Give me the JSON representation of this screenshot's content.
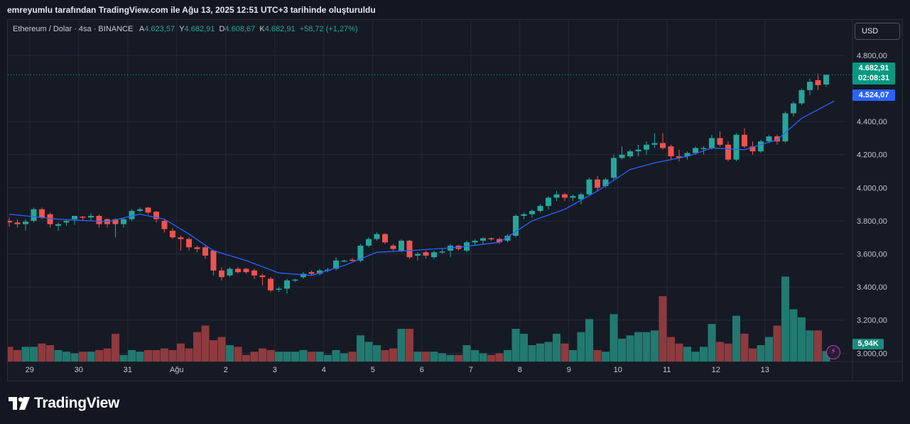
{
  "header": {
    "snapshot_text": "emreyumlu tarafından TradingView.com ile Ağu 13, 2025 12:51 UTC+3 tarihinde oluşturuldu"
  },
  "legend": {
    "symbol": "Ethereum / Dolar · 4sa · BINANCE",
    "open_label": "A",
    "open": "4.623,57",
    "high_label": "Y",
    "high": "4.682,91",
    "low_label": "D",
    "low": "4.608,67",
    "close_label": "K",
    "close": "4.682,91",
    "change": "+58,72 (+1,27%)"
  },
  "currency_button": "USD",
  "price_tags": {
    "last_price": "4.682,91",
    "countdown": "02:08:31",
    "ma_value": "4.524,07",
    "volume": "5,94K"
  },
  "brand": {
    "name": "TradingView"
  },
  "colors": {
    "up": "#26a69a",
    "down": "#ef5350",
    "up_volume": "#22796f",
    "down_volume": "#8e3a3e",
    "moving_average": "#2962ff",
    "background": "#161a25",
    "grid": "#262b3a"
  },
  "chart_data": {
    "type": "candlestick",
    "symbol": "ETHUSD",
    "timeframe": "4sa",
    "x_ticks": [
      "29",
      "30",
      "31",
      "Ağu",
      "2",
      "3",
      "4",
      "5",
      "6",
      "7",
      "8",
      "9",
      "10",
      "11",
      "12",
      "13"
    ],
    "y_ticks": [
      "4.800,00",
      "4.400,00",
      "4.200,00",
      "4.000,00",
      "3.800,00",
      "3.600,00",
      "3.400,00",
      "3.200,00",
      "3.000,00"
    ],
    "y_tick_values": [
      4800,
      4400,
      4200,
      4000,
      3800,
      3600,
      3400,
      3200,
      3000
    ],
    "ylim": [
      2950,
      4980
    ],
    "grid": true,
    "candles": [
      {
        "o": 3800,
        "h": 3820,
        "l": 3765,
        "c": 3790,
        "v": 0.45
      },
      {
        "o": 3790,
        "h": 3810,
        "l": 3760,
        "c": 3780,
        "v": 0.35
      },
      {
        "o": 3780,
        "h": 3810,
        "l": 3740,
        "c": 3795,
        "v": 0.45
      },
      {
        "o": 3800,
        "h": 3880,
        "l": 3790,
        "c": 3870,
        "v": 0.45
      },
      {
        "o": 3870,
        "h": 3880,
        "l": 3810,
        "c": 3820,
        "v": 0.55
      },
      {
        "o": 3840,
        "h": 3850,
        "l": 3760,
        "c": 3780,
        "v": 0.5
      },
      {
        "o": 3770,
        "h": 3790,
        "l": 3740,
        "c": 3780,
        "v": 0.35
      },
      {
        "o": 3790,
        "h": 3810,
        "l": 3770,
        "c": 3800,
        "v": 0.3
      },
      {
        "o": 3810,
        "h": 3825,
        "l": 3775,
        "c": 3830,
        "v": 0.25
      },
      {
        "o": 3825,
        "h": 3830,
        "l": 3805,
        "c": 3820,
        "v": 0.3
      },
      {
        "o": 3820,
        "h": 3845,
        "l": 3800,
        "c": 3830,
        "v": 0.3
      },
      {
        "o": 3830,
        "h": 3840,
        "l": 3760,
        "c": 3780,
        "v": 0.35
      },
      {
        "o": 3810,
        "h": 3815,
        "l": 3760,
        "c": 3780,
        "v": 0.4
      },
      {
        "o": 3810,
        "h": 3815,
        "l": 3700,
        "c": 3780,
        "v": 0.85
      },
      {
        "o": 3780,
        "h": 3820,
        "l": 3760,
        "c": 3810,
        "v": 0.2
      },
      {
        "o": 3810,
        "h": 3870,
        "l": 3800,
        "c": 3860,
        "v": 0.35
      },
      {
        "o": 3860,
        "h": 3880,
        "l": 3850,
        "c": 3870,
        "v": 0.3
      },
      {
        "o": 3880,
        "h": 3885,
        "l": 3840,
        "c": 3850,
        "v": 0.35
      },
      {
        "o": 3855,
        "h": 3860,
        "l": 3790,
        "c": 3810,
        "v": 0.35
      },
      {
        "o": 3800,
        "h": 3810,
        "l": 3730,
        "c": 3750,
        "v": 0.4
      },
      {
        "o": 3740,
        "h": 3755,
        "l": 3690,
        "c": 3700,
        "v": 0.35
      },
      {
        "o": 3700,
        "h": 3710,
        "l": 3620,
        "c": 3690,
        "v": 0.55
      },
      {
        "o": 3690,
        "h": 3700,
        "l": 3620,
        "c": 3640,
        "v": 0.4
      },
      {
        "o": 3640,
        "h": 3650,
        "l": 3610,
        "c": 3630,
        "v": 0.9
      },
      {
        "o": 3640,
        "h": 3650,
        "l": 3570,
        "c": 3590,
        "v": 1.1
      },
      {
        "o": 3620,
        "h": 3625,
        "l": 3470,
        "c": 3500,
        "v": 0.65
      },
      {
        "o": 3500,
        "h": 3520,
        "l": 3440,
        "c": 3460,
        "v": 0.75
      },
      {
        "o": 3470,
        "h": 3520,
        "l": 3460,
        "c": 3510,
        "v": 0.5
      },
      {
        "o": 3510,
        "h": 3520,
        "l": 3480,
        "c": 3490,
        "v": 0.45
      },
      {
        "o": 3510,
        "h": 3515,
        "l": 3480,
        "c": 3490,
        "v": 0.2
      },
      {
        "o": 3500,
        "h": 3510,
        "l": 3450,
        "c": 3470,
        "v": 0.3
      },
      {
        "o": 3470,
        "h": 3480,
        "l": 3410,
        "c": 3460,
        "v": 0.4
      },
      {
        "o": 3450,
        "h": 3460,
        "l": 3370,
        "c": 3380,
        "v": 0.35
      },
      {
        "o": 3385,
        "h": 3400,
        "l": 3370,
        "c": 3390,
        "v": 0.3
      },
      {
        "o": 3390,
        "h": 3450,
        "l": 3360,
        "c": 3440,
        "v": 0.3
      },
      {
        "o": 3440,
        "h": 3450,
        "l": 3430,
        "c": 3445,
        "v": 0.3
      },
      {
        "o": 3460,
        "h": 3490,
        "l": 3450,
        "c": 3480,
        "v": 0.35
      },
      {
        "o": 3490,
        "h": 3500,
        "l": 3470,
        "c": 3480,
        "v": 0.3
      },
      {
        "o": 3480,
        "h": 3510,
        "l": 3470,
        "c": 3500,
        "v": 0.3
      },
      {
        "o": 3500,
        "h": 3515,
        "l": 3490,
        "c": 3505,
        "v": 0.2
      },
      {
        "o": 3510,
        "h": 3580,
        "l": 3500,
        "c": 3560,
        "v": 0.35
      },
      {
        "o": 3560,
        "h": 3565,
        "l": 3550,
        "c": 3560,
        "v": 0.25
      },
      {
        "o": 3565,
        "h": 3575,
        "l": 3555,
        "c": 3560,
        "v": 0.3
      },
      {
        "o": 3560,
        "h": 3660,
        "l": 3550,
        "c": 3650,
        "v": 0.8
      },
      {
        "o": 3650,
        "h": 3700,
        "l": 3640,
        "c": 3690,
        "v": 0.6
      },
      {
        "o": 3690,
        "h": 3730,
        "l": 3680,
        "c": 3720,
        "v": 0.5
      },
      {
        "o": 3720,
        "h": 3725,
        "l": 3660,
        "c": 3670,
        "v": 0.35
      },
      {
        "o": 3650,
        "h": 3660,
        "l": 3620,
        "c": 3630,
        "v": 0.4
      },
      {
        "o": 3620,
        "h": 3690,
        "l": 3610,
        "c": 3680,
        "v": 1.0
      },
      {
        "o": 3680,
        "h": 3685,
        "l": 3570,
        "c": 3580,
        "v": 1.0
      },
      {
        "o": 3590,
        "h": 3610,
        "l": 3560,
        "c": 3600,
        "v": 0.3
      },
      {
        "o": 3610,
        "h": 3620,
        "l": 3570,
        "c": 3590,
        "v": 0.3
      },
      {
        "o": 3580,
        "h": 3620,
        "l": 3570,
        "c": 3610,
        "v": 0.3
      },
      {
        "o": 3610,
        "h": 3630,
        "l": 3600,
        "c": 3615,
        "v": 0.25
      },
      {
        "o": 3620,
        "h": 3660,
        "l": 3580,
        "c": 3650,
        "v": 0.2
      },
      {
        "o": 3650,
        "h": 3655,
        "l": 3620,
        "c": 3630,
        "v": 0.2
      },
      {
        "o": 3620,
        "h": 3680,
        "l": 3610,
        "c": 3670,
        "v": 0.5
      },
      {
        "o": 3670,
        "h": 3690,
        "l": 3650,
        "c": 3680,
        "v": 0.35
      },
      {
        "o": 3680,
        "h": 3700,
        "l": 3660,
        "c": 3695,
        "v": 0.25
      },
      {
        "o": 3695,
        "h": 3700,
        "l": 3680,
        "c": 3690,
        "v": 0.2
      },
      {
        "o": 3690,
        "h": 3700,
        "l": 3660,
        "c": 3670,
        "v": 0.25
      },
      {
        "o": 3680,
        "h": 3720,
        "l": 3670,
        "c": 3710,
        "v": 0.35
      },
      {
        "o": 3710,
        "h": 3840,
        "l": 3700,
        "c": 3830,
        "v": 1.0
      },
      {
        "o": 3830,
        "h": 3850,
        "l": 3810,
        "c": 3840,
        "v": 0.85
      },
      {
        "o": 3840,
        "h": 3870,
        "l": 3820,
        "c": 3860,
        "v": 0.5
      },
      {
        "o": 3860,
        "h": 3900,
        "l": 3850,
        "c": 3890,
        "v": 0.55
      },
      {
        "o": 3890,
        "h": 3950,
        "l": 3870,
        "c": 3940,
        "v": 0.6
      },
      {
        "o": 3940,
        "h": 3980,
        "l": 3920,
        "c": 3960,
        "v": 0.85
      },
      {
        "o": 3960,
        "h": 3970,
        "l": 3920,
        "c": 3940,
        "v": 0.55
      },
      {
        "o": 3940,
        "h": 3960,
        "l": 3920,
        "c": 3950,
        "v": 0.35
      },
      {
        "o": 3930,
        "h": 3970,
        "l": 3900,
        "c": 3960,
        "v": 0.9
      },
      {
        "o": 3960,
        "h": 4060,
        "l": 3950,
        "c": 4050,
        "v": 1.3
      },
      {
        "o": 4050,
        "h": 4070,
        "l": 3980,
        "c": 4000,
        "v": 0.35
      },
      {
        "o": 4010,
        "h": 4060,
        "l": 4000,
        "c": 4050,
        "v": 0.3
      },
      {
        "o": 4060,
        "h": 4200,
        "l": 4050,
        "c": 4180,
        "v": 1.45
      },
      {
        "o": 4180,
        "h": 4250,
        "l": 4170,
        "c": 4200,
        "v": 0.7
      },
      {
        "o": 4190,
        "h": 4230,
        "l": 4180,
        "c": 4220,
        "v": 0.8
      },
      {
        "o": 4220,
        "h": 4260,
        "l": 4190,
        "c": 4230,
        "v": 0.9
      },
      {
        "o": 4230,
        "h": 4280,
        "l": 4200,
        "c": 4260,
        "v": 0.9
      },
      {
        "o": 4260,
        "h": 4330,
        "l": 4240,
        "c": 4270,
        "v": 0.95
      },
      {
        "o": 4270,
        "h": 4330,
        "l": 4230,
        "c": 4240,
        "v": 2.0
      },
      {
        "o": 4250,
        "h": 4260,
        "l": 4170,
        "c": 4190,
        "v": 0.75
      },
      {
        "o": 4190,
        "h": 4230,
        "l": 4160,
        "c": 4180,
        "v": 0.55
      },
      {
        "o": 4190,
        "h": 4220,
        "l": 4170,
        "c": 4210,
        "v": 0.45
      },
      {
        "o": 4210,
        "h": 4250,
        "l": 4200,
        "c": 4240,
        "v": 0.3
      },
      {
        "o": 4240,
        "h": 4250,
        "l": 4200,
        "c": 4240,
        "v": 0.45
      },
      {
        "o": 4240,
        "h": 4320,
        "l": 4230,
        "c": 4300,
        "v": 1.15
      },
      {
        "o": 4300,
        "h": 4340,
        "l": 4250,
        "c": 4260,
        "v": 0.6
      },
      {
        "o": 4260,
        "h": 4280,
        "l": 4160,
        "c": 4170,
        "v": 0.55
      },
      {
        "o": 4170,
        "h": 4330,
        "l": 4160,
        "c": 4320,
        "v": 1.4
      },
      {
        "o": 4320,
        "h": 4360,
        "l": 4240,
        "c": 4250,
        "v": 0.85
      },
      {
        "o": 4250,
        "h": 4280,
        "l": 4200,
        "c": 4220,
        "v": 0.4
      },
      {
        "o": 4220,
        "h": 4290,
        "l": 4210,
        "c": 4280,
        "v": 0.5
      },
      {
        "o": 4280,
        "h": 4320,
        "l": 4270,
        "c": 4310,
        "v": 0.75
      },
      {
        "o": 4310,
        "h": 4320,
        "l": 4260,
        "c": 4280,
        "v": 1.1
      },
      {
        "o": 4280,
        "h": 4460,
        "l": 4270,
        "c": 4450,
        "v": 2.6
      },
      {
        "o": 4450,
        "h": 4520,
        "l": 4430,
        "c": 4510,
        "v": 1.6
      },
      {
        "o": 4510,
        "h": 4600,
        "l": 4500,
        "c": 4590,
        "v": 1.35
      },
      {
        "o": 4590,
        "h": 4660,
        "l": 4560,
        "c": 4640,
        "v": 0.95
      },
      {
        "o": 4650,
        "h": 4690,
        "l": 4590,
        "c": 4620,
        "v": 0.95
      },
      {
        "o": 4623.57,
        "h": 4682.91,
        "l": 4608.67,
        "c": 4682.91,
        "v": 0.32
      }
    ],
    "moving_average": [
      {
        "i": 0,
        "v": 3840
      },
      {
        "i": 6,
        "v": 3810
      },
      {
        "i": 12,
        "v": 3795
      },
      {
        "i": 16,
        "v": 3840
      },
      {
        "i": 19,
        "v": 3810
      },
      {
        "i": 22,
        "v": 3720
      },
      {
        "i": 25,
        "v": 3620
      },
      {
        "i": 29,
        "v": 3560
      },
      {
        "i": 33,
        "v": 3485
      },
      {
        "i": 37,
        "v": 3470
      },
      {
        "i": 41,
        "v": 3530
      },
      {
        "i": 45,
        "v": 3610
      },
      {
        "i": 49,
        "v": 3620
      },
      {
        "i": 55,
        "v": 3640
      },
      {
        "i": 60,
        "v": 3670
      },
      {
        "i": 64,
        "v": 3800
      },
      {
        "i": 68,
        "v": 3870
      },
      {
        "i": 72,
        "v": 3980
      },
      {
        "i": 76,
        "v": 4110
      },
      {
        "i": 79,
        "v": 4150
      },
      {
        "i": 83,
        "v": 4190
      },
      {
        "i": 86,
        "v": 4240
      },
      {
        "i": 90,
        "v": 4230
      },
      {
        "i": 94,
        "v": 4290
      },
      {
        "i": 97,
        "v": 4420
      },
      {
        "i": 101,
        "v": 4524.07
      }
    ],
    "last_price": 4682.91,
    "volume_last": "5,94K"
  }
}
